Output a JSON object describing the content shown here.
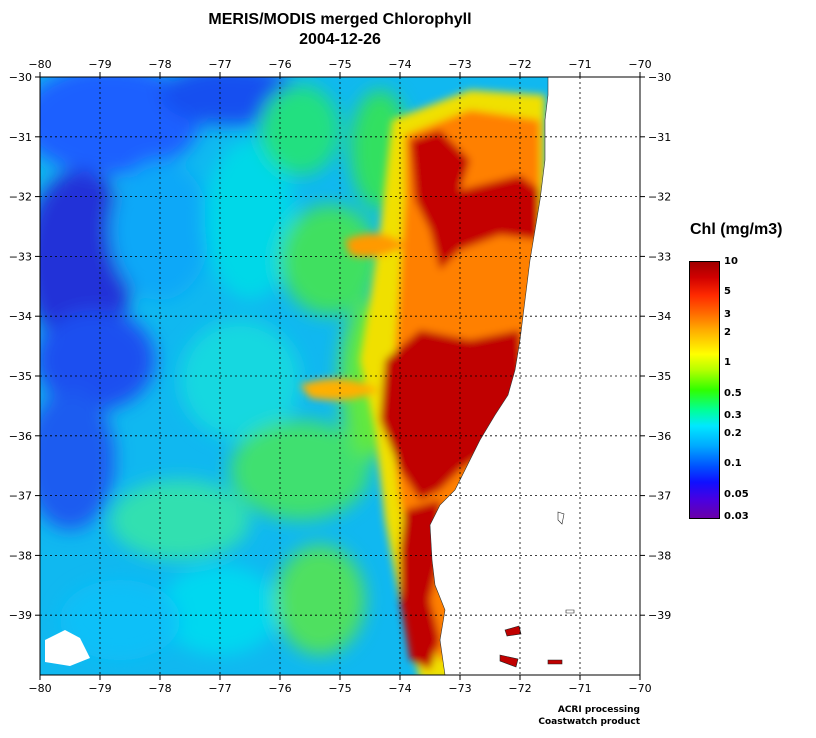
{
  "title": "MERIS/MODIS merged Chlorophyll",
  "date": "2004-12-26",
  "legend": {
    "title": "Chl (mg/m3)",
    "ticks": [
      "10",
      "5",
      "3",
      "2",
      "1",
      "0.5",
      "0.3",
      "0.2",
      "0.1",
      "0.05",
      "0.03"
    ]
  },
  "axes": {
    "lon_labels": [
      "−80",
      "−79",
      "−78",
      "−77",
      "−76",
      "−75",
      "−74",
      "−73",
      "−72",
      "−71",
      "−70"
    ],
    "lat_labels": [
      "−30",
      "−31",
      "−32",
      "−33",
      "−34",
      "−35",
      "−36",
      "−37",
      "−38",
      "−39"
    ],
    "lon_range": [
      -80,
      -70
    ],
    "lat_range": [
      -40,
      -30
    ],
    "grid": true
  },
  "credits": {
    "line1": "ACRI processing",
    "line2": "Coastwatch product"
  },
  "colors": {
    "ocean_low": "#1a3cff",
    "ocean_mid": "#00c8ff",
    "ocean_green": "#40e030",
    "coastal_high": "#c00000",
    "land": "#ffffff"
  }
}
